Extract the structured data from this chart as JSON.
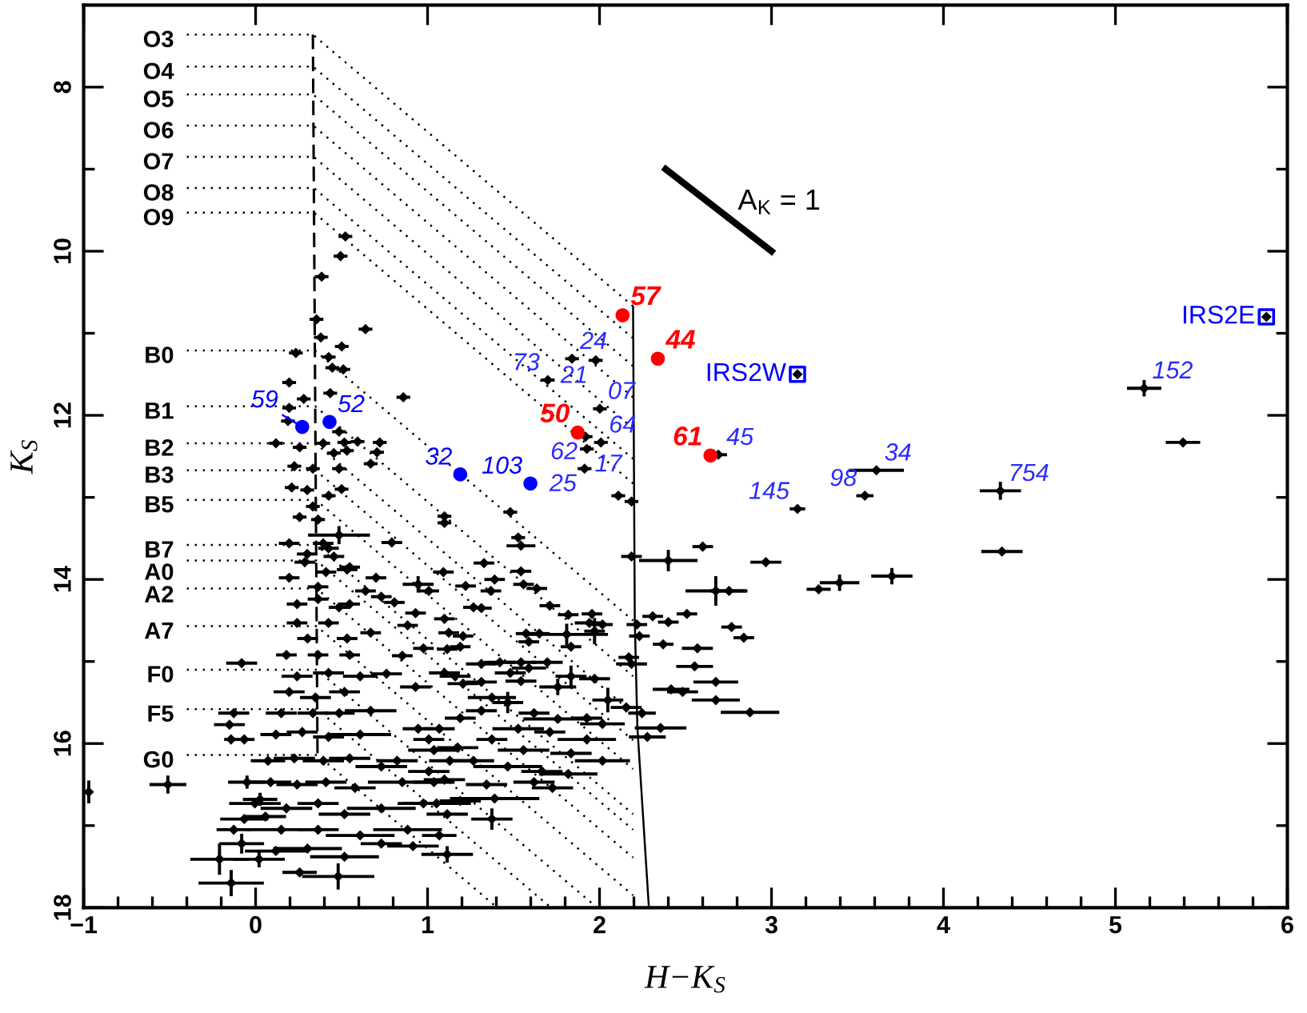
{
  "chart_data": {
    "type": "scatter",
    "xlabel": "H−K$_{S}$",
    "ylabel": "K$_{S}$",
    "xlim": [
      -1,
      6
    ],
    "ylim": [
      18,
      7
    ],
    "xticks": [
      {
        "value": -1,
        "label": "−1"
      },
      {
        "value": -0.8,
        "label": null
      },
      {
        "value": -0.6,
        "label": null
      },
      {
        "value": -0.4,
        "label": null
      },
      {
        "value": -0.2,
        "label": null
      },
      0,
      {
        "value": 0.2,
        "label": null
      },
      {
        "value": 0.4,
        "label": null
      },
      {
        "value": 0.6,
        "label": null
      },
      {
        "value": 0.8,
        "label": null
      },
      1,
      {
        "value": 1.2,
        "label": null
      },
      {
        "value": 1.4,
        "label": null
      },
      {
        "value": 1.6,
        "label": null
      },
      {
        "value": 1.8,
        "label": null
      },
      2,
      {
        "value": 2.2,
        "label": null
      },
      {
        "value": 2.4,
        "label": null
      },
      {
        "value": 2.6,
        "label": null
      },
      {
        "value": 2.8,
        "label": null
      },
      3,
      {
        "value": 3.2,
        "label": null
      },
      {
        "value": 3.4,
        "label": null
      },
      {
        "value": 3.6,
        "label": null
      },
      {
        "value": 3.8,
        "label": null
      },
      4,
      {
        "value": 4.2,
        "label": null
      },
      {
        "value": 4.4,
        "label": null
      },
      {
        "value": 4.6,
        "label": null
      },
      {
        "value": 4.8,
        "label": null
      },
      5,
      {
        "value": 5.2,
        "label": null
      },
      {
        "value": 5.4,
        "label": null
      },
      {
        "value": 5.6,
        "label": null
      },
      {
        "value": 5.8,
        "label": null
      },
      6
    ],
    "yticks": [
      8,
      {
        "value": 9,
        "label": null
      },
      10,
      {
        "value": 11,
        "label": null
      },
      12,
      {
        "value": 13,
        "label": null
      },
      14,
      {
        "value": 15,
        "label": null
      },
      16,
      {
        "value": 17,
        "label": null
      },
      18
    ],
    "series": [
      {
        "type": "line",
        "name": "O3",
        "color": "#000000",
        "line_style": "dotted",
        "x": [
          -0.4,
          0.333,
          2.195
        ],
        "values": [
          7.36,
          7.36,
          10.67
        ]
      },
      {
        "type": "line",
        "name": "O4",
        "color": "#000000",
        "line_style": "dotted",
        "x": [
          -0.4,
          0.334,
          2.195
        ],
        "values": [
          7.75,
          7.75,
          11.06
        ]
      },
      {
        "type": "line",
        "name": "O5",
        "color": "#000000",
        "line_style": "dotted",
        "x": [
          -0.4,
          0.335,
          2.195
        ],
        "values": [
          8.09,
          8.09,
          11.4
        ]
      },
      {
        "type": "line",
        "name": "O6",
        "color": "#000000",
        "line_style": "dotted",
        "x": [
          -0.4,
          0.336,
          2.195
        ],
        "values": [
          8.47,
          8.47,
          11.78
        ]
      },
      {
        "type": "line",
        "name": "O7",
        "color": "#000000",
        "line_style": "dotted",
        "x": [
          -0.4,
          0.338,
          2.195
        ],
        "values": [
          8.85,
          8.85,
          12.16
        ]
      },
      {
        "type": "line",
        "name": "O8",
        "color": "#000000",
        "line_style": "dotted",
        "x": [
          -0.4,
          0.339,
          2.195
        ],
        "values": [
          9.23,
          9.23,
          12.53
        ]
      },
      {
        "type": "line",
        "name": "O9",
        "color": "#000000",
        "line_style": "dotted",
        "x": [
          -0.4,
          0.34,
          2.195
        ],
        "values": [
          9.53,
          9.53,
          12.83
        ]
      },
      {
        "type": "line",
        "name": "B0",
        "color": "#000000",
        "line_style": "dotted",
        "x": [
          -0.4,
          0.345,
          2.195
        ],
        "values": [
          11.21,
          11.21,
          14.5
        ]
      },
      {
        "type": "line",
        "name": "B1",
        "color": "#000000",
        "line_style": "dotted",
        "x": [
          -0.4,
          0.347,
          2.195
        ],
        "values": [
          11.89,
          11.89,
          15.18
        ]
      },
      {
        "type": "line",
        "name": "B2",
        "color": "#000000",
        "line_style": "dotted",
        "x": [
          -0.4,
          0.348,
          2.195
        ],
        "values": [
          12.34,
          12.34,
          15.63
        ]
      },
      {
        "type": "line",
        "name": "B3",
        "color": "#000000",
        "line_style": "dotted",
        "x": [
          -0.4,
          0.349,
          2.195
        ],
        "values": [
          12.67,
          12.67,
          15.96
        ]
      },
      {
        "type": "line",
        "name": "B5",
        "color": "#000000",
        "line_style": "dotted",
        "x": [
          -0.4,
          0.35,
          2.195
        ],
        "values": [
          13.03,
          13.03,
          16.31
        ]
      },
      {
        "type": "line",
        "name": "B7",
        "color": "#000000",
        "line_style": "dotted",
        "x": [
          -0.4,
          0.352,
          2.195
        ],
        "values": [
          13.58,
          13.58,
          16.86
        ]
      },
      {
        "type": "line",
        "name": "A0",
        "color": "#000000",
        "line_style": "dotted",
        "x": [
          -0.4,
          0.353,
          2.195
        ],
        "values": [
          13.77,
          13.77,
          17.05
        ]
      },
      {
        "type": "line",
        "name": "A2",
        "color": "#000000",
        "line_style": "dotted",
        "x": [
          -0.4,
          0.354,
          2.195
        ],
        "values": [
          14.11,
          14.11,
          17.39
        ]
      },
      {
        "type": "line",
        "name": "A7",
        "color": "#000000",
        "line_style": "dotted",
        "x": [
          -0.4,
          0.355,
          2.195
        ],
        "values": [
          14.57,
          14.57,
          17.85
        ]
      },
      {
        "type": "line",
        "name": "F0",
        "color": "#000000",
        "line_style": "dotted",
        "x": [
          -0.4,
          0.357,
          1.986
        ],
        "values": [
          15.1,
          15.1,
          18
        ]
      },
      {
        "type": "line",
        "name": "F5",
        "color": "#000000",
        "line_style": "dotted",
        "x": [
          -0.4,
          0.358,
          1.718
        ],
        "values": [
          15.58,
          15.58,
          18
        ]
      },
      {
        "type": "line",
        "name": "G0",
        "color": "#000000",
        "line_style": "dotted",
        "x": [
          -0.4,
          0.36,
          1.405
        ],
        "values": [
          16.14,
          16.14,
          18
        ]
      },
      {
        "type": "line",
        "color": "#000000",
        "line_style": "dashed",
        "x": [
          0.333,
          0.349,
          0.36
        ],
        "values": [
          7.36,
          12.67,
          16.14
        ]
      },
      {
        "type": "line",
        "color": "#000000",
        "line_style": "solid",
        "x": [
          2.195,
          2.205,
          2.22,
          2.287
        ],
        "values": [
          10.68,
          14.5,
          15.8,
          18
        ]
      },
      {
        "type": "line",
        "name": "A$_{K}$ = 1",
        "color": "#000000",
        "line_style": "solid",
        "x": [
          2.385,
          3.0
        ],
        "values": [
          9.0,
          10.0
        ]
      },
      {
        "color": "#000000",
        "marker": "diamond",
        "x": [
          0.522,
          0.494,
          0.384,
          0.354,
          0.379,
          0.639,
          0.234,
          0.425,
          0.501,
          0.446,
          0.51,
          0.195,
          0.434,
          0.28,
          0.859,
          0.195,
          0.188,
          0.118,
          0.256,
          0.393,
          0.485,
          0.516,
          0.531,
          0.593,
          0.722,
          0.706,
          0.669,
          0.455,
          0.333,
          0.485,
          0.225,
          0.21,
          0.3,
          0.425,
          0.5,
          0.333,
          0.256,
          0.363,
          1.84,
          1.978,
          1.699,
          2.002,
          1.919,
          2.008,
          1.926,
          1.913,
          2.109,
          2.186,
          1.098,
          1.098,
          1.481,
          1.527
        ],
        "values": [
          9.82,
          10.06,
          10.31,
          10.83,
          11.05,
          10.95,
          11.24,
          11.29,
          11.16,
          11.42,
          11.44,
          11.6,
          11.73,
          11.8,
          11.78,
          11.91,
          12.07,
          12.34,
          12.39,
          12.34,
          12.2,
          12.33,
          12.43,
          12.32,
          12.33,
          12.45,
          12.59,
          12.46,
          12.65,
          12.65,
          12.62,
          12.88,
          12.91,
          12.98,
          12.9,
          13.11,
          13.24,
          13.27,
          11.31,
          11.33,
          11.57,
          11.92,
          12.26,
          12.33,
          12.41,
          12.65,
          12.98,
          13.05,
          13.23,
          13.31,
          13.18,
          13.49
        ],
        "xerrors": [
          0.04,
          0.04,
          0.04,
          0.04,
          0.04,
          0.04,
          0.04,
          0.04,
          0.04,
          0.04,
          0.04,
          0.04,
          0.04,
          0.04,
          0.04,
          0.04,
          0.04,
          0.04,
          0.04,
          0.04,
          0.04,
          0.04,
          0.04,
          0.04,
          0.04,
          0.04,
          0.04,
          0.04,
          0.04,
          0.04,
          0.04,
          0.04,
          0.04,
          0.04,
          0.04,
          0.04,
          0.04,
          0.04,
          0.04,
          0.04,
          0.04,
          0.04,
          0.04,
          0.04,
          0.04,
          0.04,
          0.04,
          0.04,
          0.04,
          0.04,
          0.04,
          0.04
        ]
      },
      {
        "color": "#000000",
        "marker": "diamond",
        "x": [
          3.151,
          5.878,
          2.691,
          5.167,
          5.393,
          3.61,
          3.543,
          4.331,
          4.34,
          3.7,
          3.274,
          3.396,
          3.151
        ],
        "values": [
          11.5,
          10.8,
          12.48,
          11.67,
          12.33,
          12.67,
          12.98,
          12.92,
          13.66,
          13.96,
          14.12,
          14.04,
          13.14
        ],
        "xerrors": [
          null,
          null,
          0.05,
          0.1,
          0.1,
          0.16,
          0.05,
          0.12,
          0.12,
          0.12,
          0.07,
          0.115,
          0.045
        ],
        "errors": [
          null,
          null,
          null,
          0.1,
          null,
          null,
          null,
          0.11,
          null,
          0.1,
          null,
          0.1,
          null
        ]
      },
      {
        "color": "#000000",
        "marker": "diamond",
        "x": [
          0.485,
          0.195,
          0.393,
          0.792,
          0.3,
          0.455,
          0.547,
          0.7,
          0.195,
          0.945,
          0.363,
          0.639,
          0.807,
          0.93,
          0.241,
          0.485,
          0.884,
          0.669,
          0.976,
          0.853,
          0.424,
          0.286,
          0.409,
          0.532,
          0.363,
          0.547,
          0.731,
          0.241,
          0.424,
          0.302,
          0.532,
          0.179,
          0.363,
          0.547,
          1.543,
          2.186,
          2.4,
          2.6,
          2.967,
          2.676,
          2.753,
          1.328,
          1.092,
          1.39,
          1.368,
          1.221,
          1.543,
          1.558,
          1.635,
          1.267,
          1.313,
          1.711,
          1.818,
          1.956,
          1.941,
          2.017,
          2.217,
          2.309,
          2.4,
          2.508,
          1.809,
          1.573,
          1.65,
          1.123,
          1.206,
          1.589,
          1.834,
          1.971,
          2.232,
          2.37,
          2.569,
          2.768,
          2.839,
          2.17,
          1.114,
          1.19,
          1.007,
          1.098
        ],
        "values": [
          13.46,
          13.56,
          13.56,
          13.55,
          13.69,
          13.72,
          13.85,
          13.98,
          13.98,
          14.06,
          14.09,
          14.14,
          14.28,
          14.41,
          14.3,
          14.34,
          14.56,
          14.65,
          14.84,
          14.93,
          13.62,
          13.79,
          13.91,
          13.88,
          14.24,
          14.3,
          14.21,
          14.53,
          14.53,
          14.72,
          14.72,
          14.92,
          14.92,
          14.92,
          13.59,
          13.72,
          13.77,
          13.6,
          13.79,
          14.14,
          14.14,
          13.8,
          13.91,
          14.0,
          14.14,
          14.08,
          13.9,
          14.06,
          14.11,
          14.34,
          14.35,
          14.32,
          14.43,
          14.42,
          14.53,
          14.55,
          14.55,
          14.45,
          14.52,
          14.42,
          14.67,
          14.66,
          14.66,
          14.65,
          14.69,
          14.76,
          14.82,
          14.63,
          14.69,
          14.79,
          14.84,
          14.58,
          14.71,
          14.95,
          14.85,
          14.82,
          14.14,
          14.48
        ],
        "xerrors": [
          0.18,
          0.06,
          0.06,
          0.06,
          0.06,
          0.06,
          0.06,
          0.06,
          0.06,
          0.09,
          0.06,
          0.06,
          0.06,
          0.06,
          0.06,
          0.06,
          0.06,
          0.06,
          0.06,
          0.06,
          0.06,
          0.06,
          0.06,
          0.06,
          0.06,
          0.06,
          0.06,
          0.06,
          0.06,
          0.06,
          0.06,
          0.06,
          0.06,
          0.06,
          0.084,
          0.06,
          0.17,
          0.06,
          0.09,
          0.176,
          0.107,
          0.06,
          0.06,
          0.06,
          0.06,
          0.06,
          0.06,
          0.06,
          0.06,
          0.06,
          0.06,
          0.06,
          0.06,
          0.06,
          0.085,
          0.06,
          0.06,
          0.06,
          0.06,
          0.06,
          0.24,
          0.06,
          0.06,
          0.06,
          0.06,
          0.06,
          0.06,
          0.06,
          0.06,
          0.06,
          0.09,
          0.06,
          0.06,
          0.06,
          0.06,
          0.06,
          0.06,
          0.06
        ],
        "errors": [
          0.11,
          null,
          null,
          null,
          null,
          null,
          null,
          null,
          null,
          0.1,
          null,
          null,
          null,
          null,
          null,
          null,
          null,
          null,
          null,
          null,
          null,
          null,
          null,
          null,
          null,
          null,
          null,
          null,
          null,
          null,
          null,
          null,
          null,
          null,
          null,
          null,
          0.13,
          null,
          null,
          0.18,
          null,
          null,
          null,
          null,
          null,
          null,
          null,
          null,
          null,
          null,
          null,
          null,
          null,
          null,
          null,
          null,
          null,
          null,
          null,
          null,
          0.13,
          null,
          null,
          null,
          null,
          null,
          null,
          0.16,
          null,
          null,
          null,
          null,
          null,
          null,
          null,
          null,
          null,
          null
        ]
      },
      {
        "color": "#000000",
        "marker": "diamond",
        "x": [
          -0.081,
          0.761,
          0.93,
          -0.127,
          -0.152,
          -0.143,
          -0.066,
          0.241,
          0.424,
          0.608,
          0.195,
          0.348,
          0.517,
          0.149,
          0.333,
          0.486,
          0.669,
          0.118,
          0.271,
          0.424,
          0.608,
          0.945,
          2.186,
          2.553,
          2.676,
          2.416,
          2.483,
          2.676,
          2.875,
          2.355,
          2.278,
          2.247,
          2.155,
          2.048,
          1.757,
          1.834,
          1.971,
          1.589,
          1.696,
          1.313,
          1.42,
          1.543,
          1.098,
          1.16,
          1.206,
          1.313,
          1.481,
          1.543,
          1.374,
          1.466,
          1.313,
          1.619,
          1.757,
          1.926,
          2.017,
          1.19,
          1.068,
          1.527,
          1.711,
          1.926,
          1.374,
          1.007
        ],
        "values": [
          15.02,
          15.15,
          15.31,
          15.63,
          15.77,
          15.95,
          15.95,
          15.18,
          15.14,
          15.18,
          15.37,
          15.44,
          15.37,
          15.63,
          15.63,
          15.63,
          15.6,
          15.89,
          15.86,
          15.92,
          15.89,
          15.82,
          15.03,
          15.06,
          15.25,
          15.34,
          15.37,
          15.47,
          15.62,
          15.81,
          15.92,
          15.63,
          15.56,
          15.47,
          15.31,
          15.18,
          15.21,
          15.08,
          15.01,
          15.03,
          15.01,
          15.01,
          15.14,
          15.18,
          15.27,
          15.25,
          15.14,
          15.24,
          15.44,
          15.5,
          15.6,
          15.63,
          15.7,
          15.69,
          15.76,
          15.69,
          15.82,
          15.82,
          15.86,
          15.95,
          15.95,
          15.95
        ],
        "xerrors": [
          0.09,
          0.09,
          0.09,
          0.09,
          0.09,
          0.04,
          0.06,
          0.09,
          0.09,
          0.1,
          0.09,
          0.09,
          0.09,
          0.09,
          0.09,
          0.09,
          0.15,
          0.09,
          0.09,
          0.09,
          0.18,
          0.09,
          0.09,
          0.107,
          0.13,
          0.107,
          0.09,
          0.14,
          0.17,
          0.15,
          0.107,
          0.08,
          0.09,
          0.09,
          0.107,
          0.09,
          0.09,
          0.1,
          0.09,
          0.09,
          0.09,
          0.09,
          0.09,
          0.09,
          0.09,
          0.09,
          0.09,
          0.09,
          0.14,
          0.09,
          0.09,
          0.09,
          0.2,
          0.09,
          0.13,
          0.09,
          0.09,
          0.15,
          0.09,
          0.17,
          0.09,
          0.09
        ],
        "errors": [
          null,
          null,
          null,
          null,
          null,
          null,
          null,
          null,
          null,
          null,
          null,
          null,
          null,
          null,
          null,
          null,
          null,
          null,
          null,
          null,
          null,
          null,
          null,
          null,
          null,
          null,
          null,
          null,
          null,
          null,
          null,
          null,
          null,
          0.15,
          0.1,
          0.13,
          null,
          null,
          null,
          null,
          null,
          null,
          null,
          null,
          null,
          null,
          null,
          null,
          null,
          0.13,
          null,
          null,
          null,
          null,
          null,
          null,
          null,
          null,
          null,
          null,
          null,
          null
        ]
      },
      {
        "color": "#000000",
        "marker": "diamond",
        "x": [
          -0.05,
          0.026,
          -0.97,
          -0.51,
          -0.21,
          -0.142,
          0.48,
          0.02,
          0.072,
          0.225,
          0.394,
          0.547,
          0.731,
          0.087,
          0.241,
          0.409,
          0.578,
          0.853,
          -0.004,
          0.179,
          0.363,
          0.517,
          0.731,
          0.976,
          -0.066,
          0.149,
          0.363,
          0.608,
          0.884,
          -0.081,
          0.118,
          0.302,
          0.517,
          0.731,
          0.915,
          0.256,
          -0.127,
          0.057,
          1.037,
          0.823,
          1.037,
          1.175,
          1.558,
          1.834,
          2.017,
          1.267,
          1.466,
          1.665,
          1.818,
          1.098,
          1.343,
          1.619,
          1.726,
          1.19,
          1.39,
          1.114,
          1.374,
          1.068,
          1.114,
          1.007,
          1.129,
          1.052
        ],
        "values": [
          16.47,
          16.68,
          16.59,
          16.5,
          17.41,
          17.7,
          17.62,
          17.41,
          16.21,
          16.18,
          16.21,
          16.18,
          16.28,
          16.47,
          16.5,
          16.47,
          16.54,
          16.47,
          16.73,
          16.79,
          16.73,
          16.86,
          16.79,
          16.73,
          16.92,
          17.05,
          17.05,
          17.12,
          17.05,
          17.22,
          17.31,
          17.28,
          17.38,
          17.22,
          17.25,
          17.57,
          17.05,
          16.89,
          16.08,
          16.21,
          16.47,
          16.05,
          16.08,
          16.12,
          16.21,
          16.21,
          16.28,
          16.34,
          16.37,
          16.44,
          16.5,
          16.47,
          16.54,
          16.7,
          16.67,
          16.86,
          16.92,
          17.12,
          17.35,
          16.34,
          16.21,
          16.73
        ],
        "xerrors": [
          0.11,
          0.1,
          null,
          0.107,
          0.17,
          0.19,
          0.21,
          0.15,
          0.1,
          0.12,
          0.12,
          0.12,
          0.15,
          0.12,
          0.12,
          0.12,
          0.12,
          0.2,
          0.15,
          0.15,
          0.12,
          0.15,
          0.2,
          0.15,
          0.14,
          0.2,
          0.12,
          0.2,
          0.2,
          0.13,
          0.18,
          0.2,
          0.2,
          0.12,
          0.15,
          0.1,
          0.1,
          0.12,
          0.15,
          0.12,
          0.12,
          0.12,
          0.15,
          0.12,
          0.16,
          0.12,
          0.2,
          0.12,
          0.17,
          0.12,
          0.12,
          0.12,
          0.12,
          0.12,
          0.26,
          0.12,
          0.12,
          0.1,
          0.15,
          0.12,
          0.12,
          0.2
        ],
        "errors": [
          0.08,
          0.08,
          0.14,
          0.11,
          0.19,
          0.16,
          0.16,
          0.1,
          null,
          null,
          null,
          null,
          null,
          null,
          null,
          null,
          null,
          null,
          null,
          null,
          null,
          null,
          null,
          null,
          null,
          null,
          null,
          null,
          null,
          0.12,
          null,
          null,
          null,
          null,
          null,
          null,
          null,
          null,
          null,
          null,
          null,
          null,
          null,
          null,
          null,
          null,
          null,
          null,
          null,
          null,
          null,
          null,
          null,
          null,
          null,
          null,
          0.13,
          null,
          0.1,
          null,
          null,
          null
        ]
      },
      {
        "color": "#0000ff",
        "marker": "circle",
        "x": [
          0.271,
          0.43,
          1.19,
          1.598
        ],
        "values": [
          12.14,
          12.08,
          12.72,
          12.83
        ]
      },
      {
        "color": "#ff0000",
        "marker": "circle",
        "x": [
          2.134,
          2.339,
          1.873,
          2.645
        ],
        "values": [
          10.78,
          11.31,
          12.21,
          12.49
        ]
      },
      {
        "color": "#0000ff",
        "marker": "square",
        "x": [
          3.151,
          5.878
        ],
        "values": [
          11.5,
          10.8
        ]
      }
    ],
    "annotations": [
      {
        "text": "57",
        "x": 2.134,
        "y": 10.78
      },
      {
        "text": "44",
        "x": 2.339,
        "y": 11.31
      },
      {
        "text": "50",
        "x": 1.873,
        "y": 12.21
      },
      {
        "text": "61",
        "x": 2.645,
        "y": 12.49
      },
      {
        "text": "24",
        "x": 1.84,
        "y": 11.31
      },
      {
        "text": "21",
        "x": 1.978,
        "y": 11.33
      },
      {
        "text": "73",
        "x": 1.699,
        "y": 11.57
      },
      {
        "text": "07",
        "x": 2.002,
        "y": 11.92
      },
      {
        "text": "62",
        "x": 1.919,
        "y": 12.26
      },
      {
        "text": "64",
        "x": 2.008,
        "y": 12.33
      },
      {
        "text": "17",
        "x": 1.926,
        "y": 12.41
      },
      {
        "text": "25",
        "x": 1.913,
        "y": 12.65
      },
      {
        "text": "45",
        "x": 2.691,
        "y": 12.48
      },
      {
        "text": "103",
        "x": 1.598,
        "y": 12.83
      },
      {
        "text": "32",
        "x": 1.19,
        "y": 12.72
      },
      {
        "text": "59",
        "x": 0.271,
        "y": 12.14
      },
      {
        "text": "52",
        "x": 0.43,
        "y": 12.08
      },
      {
        "text": "IRS2W",
        "x": 3.151,
        "y": 11.5
      },
      {
        "text": "IRS2E",
        "x": 5.878,
        "y": 10.8
      },
      {
        "text": "152",
        "x": 5.167,
        "y": 11.67
      },
      {
        "text": "34",
        "x": 3.61,
        "y": 12.67
      },
      {
        "text": "98",
        "x": 3.543,
        "y": 12.98
      },
      {
        "text": "754",
        "x": 4.331,
        "y": 12.92
      },
      {
        "text": "145",
        "x": 3.151,
        "y": 13.14
      }
    ]
  }
}
